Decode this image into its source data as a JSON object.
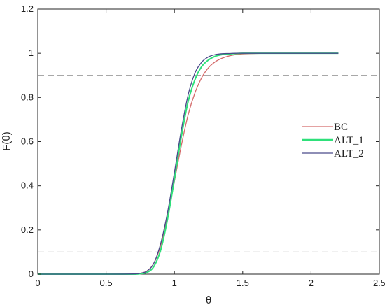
{
  "chart_data": {
    "type": "line",
    "xlabel": "θ",
    "ylabel": "F(θ)",
    "xlim": [
      0,
      2.5
    ],
    "ylim": [
      0,
      1.2
    ],
    "x_ticks": [
      "0",
      "0.5",
      "1",
      "1.5",
      "2",
      "2.5"
    ],
    "y_ticks": [
      "0",
      "0.2",
      "0.4",
      "0.6",
      "0.8",
      "1",
      "1.2"
    ],
    "grid": false,
    "legend_position": "right",
    "reference_lines": [
      {
        "y": 0.1,
        "style": "dashed",
        "color": "#8c8c8c"
      },
      {
        "y": 0.9,
        "style": "dashed",
        "color": "#8c8c8c"
      }
    ],
    "series": [
      {
        "name": "BC",
        "color": "#d46a6a",
        "x": [
          0,
          0.5,
          0.7,
          0.75,
          0.8,
          0.85,
          0.9,
          0.95,
          1.0,
          1.05,
          1.1,
          1.15,
          1.2,
          1.25,
          1.3,
          1.35,
          1.4,
          1.45,
          1.5,
          1.6,
          1.7,
          1.8,
          2.0,
          2.2
        ],
        "y": [
          0,
          0,
          0.001,
          0.004,
          0.015,
          0.05,
          0.13,
          0.26,
          0.42,
          0.58,
          0.72,
          0.82,
          0.89,
          0.935,
          0.962,
          0.978,
          0.988,
          0.994,
          0.997,
          0.999,
          1.0,
          1.0,
          1.0,
          1.0
        ]
      },
      {
        "name": "ALT_1",
        "color": "#2ee07a",
        "x": [
          0,
          0.5,
          0.7,
          0.75,
          0.8,
          0.85,
          0.9,
          0.95,
          1.0,
          1.05,
          1.1,
          1.15,
          1.2,
          1.25,
          1.3,
          1.35,
          1.4,
          1.45,
          1.5,
          1.6,
          1.7,
          1.8,
          2.0,
          2.2
        ],
        "y": [
          0,
          0,
          0.0,
          0.002,
          0.008,
          0.035,
          0.11,
          0.25,
          0.43,
          0.62,
          0.78,
          0.88,
          0.94,
          0.97,
          0.987,
          0.994,
          0.997,
          0.999,
          1.0,
          1.0,
          1.0,
          1.0,
          1.0,
          1.0
        ]
      },
      {
        "name": "ALT_2",
        "color": "#4a4a8a",
        "x": [
          0,
          0.5,
          0.7,
          0.75,
          0.8,
          0.85,
          0.9,
          0.95,
          1.0,
          1.05,
          1.1,
          1.15,
          1.2,
          1.25,
          1.3,
          1.35,
          1.4,
          1.45,
          1.5,
          1.6,
          1.7,
          1.8,
          2.0,
          2.2
        ],
        "y": [
          0,
          0,
          0.001,
          0.004,
          0.014,
          0.05,
          0.14,
          0.28,
          0.46,
          0.65,
          0.81,
          0.91,
          0.96,
          0.984,
          0.994,
          0.998,
          0.999,
          1.0,
          1.0,
          1.0,
          1.0,
          1.0,
          1.0,
          1.0
        ]
      }
    ]
  }
}
